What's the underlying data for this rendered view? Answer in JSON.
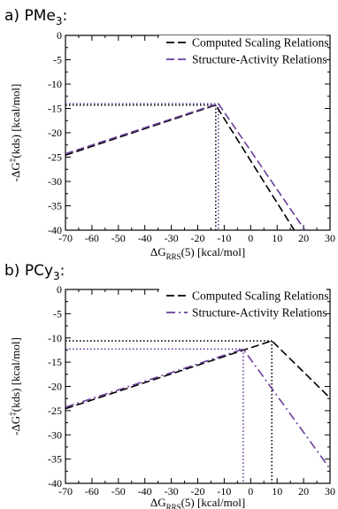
{
  "colors": {
    "computed": "#000000",
    "sar": "#6a3d9a"
  },
  "chart_data": [
    {
      "type": "line",
      "panel_label_prefix": "a) PMe",
      "panel_label_sub": "3",
      "panel_label_suffix": ":",
      "xlabel_main": "ΔG",
      "xlabel_sub": "RRS",
      "xlabel_rest": "(5) [kcal/mol]",
      "ylabel_main": "-ΔG",
      "ylabel_sup": "‡",
      "ylabel_rest": "(kds) [kcal/mol]",
      "xlim": [
        -70,
        30
      ],
      "ylim": [
        -40,
        0
      ],
      "xticks": [
        "-70",
        "-60",
        "-50",
        "-40",
        "-30",
        "-20",
        "-10",
        "0",
        "10",
        "20",
        "30"
      ],
      "yticks": [
        "0",
        "-5",
        "-10",
        "-15",
        "-20",
        "-25",
        "-30",
        "-35",
        "-40"
      ],
      "legend_position": "top-right",
      "series": [
        {
          "name": "Computed Scaling Relations",
          "color_key": "computed",
          "style": "dashed",
          "points": [
            [
              -70,
              -24.6
            ],
            [
              -13.2,
              -14.3
            ],
            [
              16.5,
              -40
            ]
          ],
          "peak": [
            -13.2,
            -14.3
          ]
        },
        {
          "name": "Structure-Activity Relations",
          "color_key": "sar",
          "style": "dashed",
          "points": [
            [
              -70,
              -24.3
            ],
            [
              -12.2,
              -14.0
            ],
            [
              20.5,
              -40
            ]
          ],
          "peak": [
            -12.2,
            -14.0
          ]
        }
      ]
    },
    {
      "type": "line",
      "panel_label_prefix": "b) PCy",
      "panel_label_sub": "3",
      "panel_label_suffix": ":",
      "xlabel_main": "ΔG",
      "xlabel_sub": "RRS",
      "xlabel_rest": "(5) [kcal/mol]",
      "ylabel_main": "-ΔG",
      "ylabel_sup": "‡",
      "ylabel_rest": "(kds) [kcal/mol]",
      "xlim": [
        -70,
        30
      ],
      "ylim": [
        -40,
        0
      ],
      "xticks": [
        "-70",
        "-60",
        "-50",
        "-40",
        "-30",
        "-20",
        "-10",
        "0",
        "10",
        "20",
        "30"
      ],
      "yticks": [
        "0",
        "-5",
        "-10",
        "-15",
        "-20",
        "-25",
        "-30",
        "-35",
        "-40"
      ],
      "legend_position": "top-right",
      "series": [
        {
          "name": "Computed Scaling Relations",
          "color_key": "computed",
          "style": "dashed",
          "points": [
            [
              -70,
              -24.6
            ],
            [
              8.0,
              -10.6
            ],
            [
              30,
              -22.4
            ]
          ],
          "peak": [
            8.0,
            -10.6
          ]
        },
        {
          "name": "Structure-Activity Relations",
          "color_key": "sar",
          "style": "dashdot",
          "points": [
            [
              -70,
              -24.3
            ],
            [
              -2.8,
              -12.3
            ],
            [
              30,
              -37.0
            ]
          ],
          "peak": [
            -2.8,
            -12.3
          ]
        }
      ]
    }
  ]
}
